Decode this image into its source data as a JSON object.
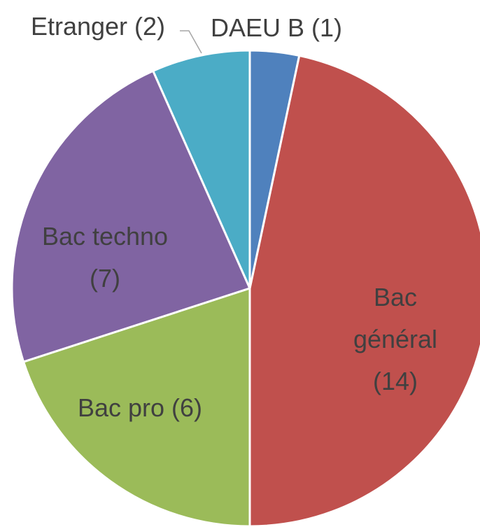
{
  "chart_data": {
    "type": "pie",
    "values": [
      1,
      14,
      6,
      7,
      2
    ],
    "value_labels": [
      "DAEU B (1)",
      "Bac général\n(14)",
      "Bac pro (6)",
      "Bac techno\n(7)",
      "Etranger (2)"
    ],
    "colors": [
      "#4f81bd",
      "#c0504d",
      "#9bbb59",
      "#8064a2",
      "#4bacc6"
    ]
  }
}
